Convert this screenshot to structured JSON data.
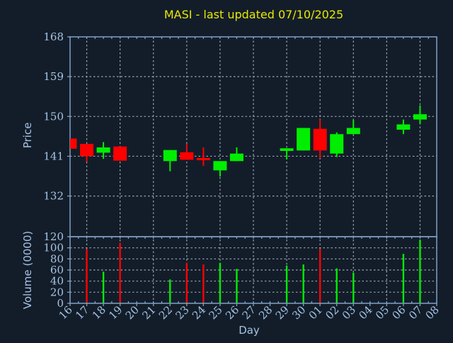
{
  "title": {
    "text": "MASI - last updated 07/10/2025",
    "color": "#e8e800"
  },
  "colors": {
    "background": "#131d2a",
    "up": "#00ee00",
    "down": "#ff0000",
    "spine": "#7fa0c4",
    "grid": "#9aa4ae",
    "tick_text": "#a6c3e3",
    "title_text": "#e8e800"
  },
  "chart_data": {
    "type": "candlestick+volume",
    "xlabel": "Day",
    "x_categories": [
      "16",
      "17",
      "18",
      "19",
      "20",
      "21",
      "22",
      "23",
      "24",
      "25",
      "26",
      "27",
      "28",
      "29",
      "30",
      "01",
      "02",
      "03",
      "04",
      "05",
      "06",
      "07",
      "08"
    ],
    "x_gridline_days": [
      "17",
      "19",
      "21",
      "23",
      "25",
      "27",
      "29",
      "01",
      "03",
      "05",
      "07"
    ],
    "price_panel": {
      "ylabel": "Price",
      "yticks": [
        132,
        141,
        150,
        159,
        168
      ],
      "ylim": [
        122.8,
        168.0
      ],
      "grid": true
    },
    "volume_panel": {
      "ylabel": "Volume (0000)",
      "yticks": [
        0,
        20,
        40,
        60,
        80,
        100,
        120
      ],
      "ylim": [
        0,
        120
      ],
      "grid": true
    },
    "series": [
      {
        "day": "16",
        "open": 145.0,
        "high": 145.0,
        "low": 142.7,
        "close": 142.7,
        "volume": 0,
        "direction": "down"
      },
      {
        "day": "17",
        "open": 143.8,
        "high": 143.8,
        "low": 139.8,
        "close": 141.0,
        "volume": 98,
        "direction": "down"
      },
      {
        "day": "18",
        "open": 141.8,
        "high": 144.2,
        "low": 140.4,
        "close": 143.0,
        "volume": 57,
        "direction": "up"
      },
      {
        "day": "19",
        "open": 143.2,
        "high": 143.2,
        "low": 140.0,
        "close": 140.0,
        "volume": 109,
        "direction": "down"
      },
      {
        "day": "22",
        "open": 139.9,
        "high": 142.4,
        "low": 137.6,
        "close": 142.4,
        "volume": 43,
        "direction": "up"
      },
      {
        "day": "23",
        "open": 141.9,
        "high": 143.8,
        "low": 140.2,
        "close": 140.2,
        "volume": 73,
        "direction": "down"
      },
      {
        "day": "24",
        "open": 140.6,
        "high": 143.0,
        "low": 138.8,
        "close": 140.1,
        "volume": 70,
        "direction": "down"
      },
      {
        "day": "25",
        "open": 137.8,
        "high": 139.9,
        "low": 136.4,
        "close": 139.9,
        "volume": 73,
        "direction": "up"
      },
      {
        "day": "26",
        "open": 139.9,
        "high": 143.0,
        "low": 139.9,
        "close": 141.6,
        "volume": 62,
        "direction": "up"
      },
      {
        "day": "29",
        "open": 142.2,
        "high": 142.8,
        "low": 140.3,
        "close": 142.8,
        "volume": 68,
        "direction": "up"
      },
      {
        "day": "30",
        "open": 142.3,
        "high": 147.4,
        "low": 142.3,
        "close": 147.4,
        "volume": 70,
        "direction": "up"
      },
      {
        "day": "01",
        "open": 147.2,
        "high": 149.3,
        "low": 140.5,
        "close": 142.3,
        "volume": 98,
        "direction": "down"
      },
      {
        "day": "02",
        "open": 141.6,
        "high": 146.4,
        "low": 140.8,
        "close": 146.0,
        "volume": 63,
        "direction": "up"
      },
      {
        "day": "03",
        "open": 146.0,
        "high": 149.2,
        "low": 146.0,
        "close": 147.4,
        "volume": 55,
        "direction": "up"
      },
      {
        "day": "06",
        "open": 147.0,
        "high": 149.3,
        "low": 146.0,
        "close": 148.2,
        "volume": 89,
        "direction": "up"
      },
      {
        "day": "07",
        "open": 149.3,
        "high": 152.5,
        "low": 148.3,
        "close": 150.5,
        "volume": 114,
        "direction": "up"
      }
    ]
  }
}
